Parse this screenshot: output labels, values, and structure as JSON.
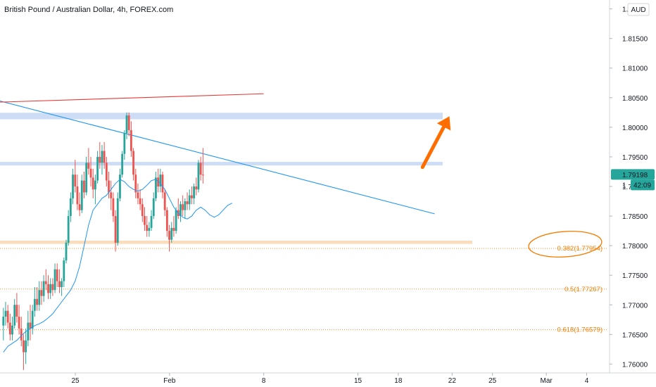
{
  "chart_data": {
    "type": "candlestick",
    "title": "British Pound / Australian Dollar, 4h, FOREX.com",
    "currency_label": "AUD",
    "y_ticks": [
      "1.82000",
      "1.81500",
      "1.81000",
      "1.80500",
      "1.80000",
      "1.79500",
      "1.79000",
      "1.78500",
      "1.78000",
      "1.77500",
      "1.77000",
      "1.76500",
      "1.76000"
    ],
    "ylim": [
      1.7585,
      1.8215
    ],
    "x_ticks": [
      {
        "label": "25",
        "day": 25
      },
      {
        "label": "Feb",
        "day": 32
      },
      {
        "label": "8",
        "day": 39
      },
      {
        "label": "15",
        "day": 46
      },
      {
        "label": "18",
        "day": 49
      },
      {
        "label": "22",
        "day": 53
      },
      {
        "label": "25",
        "day": 56
      },
      {
        "label": "Mar",
        "day": 60
      },
      {
        "label": "4",
        "day": 63
      }
    ],
    "xlim": [
      19.4,
      64.7
    ],
    "last_price": {
      "value": 1.79198,
      "label": "1.79198",
      "countdown": "42:09",
      "partial_label": "1"
    },
    "fib_levels": [
      {
        "label": "0.382(1.77954)",
        "value": 1.77954
      },
      {
        "label": "0.5(1.77267)",
        "value": 1.77267
      },
      {
        "label": "0.618(1.76579)",
        "value": 1.76579
      }
    ],
    "zones": [
      {
        "name": "resistance-upper",
        "y_top": 1.80245,
        "y_bottom": 1.80135,
        "x_start": 19.4,
        "x_end": 52.3,
        "color": "#c5d7f5"
      },
      {
        "name": "resistance-lower",
        "y_top": 1.79415,
        "y_bottom": 1.79355,
        "x_start": 19.4,
        "x_end": 52.3,
        "color": "#c5d7f5"
      },
      {
        "name": "support",
        "y_top": 1.78085,
        "y_bottom": 1.7803,
        "x_start": 19.4,
        "x_end": 54.5,
        "color": "#f9d7b0"
      }
    ],
    "trendlines": [
      {
        "name": "descending-trendline",
        "x1": 19.4,
        "y1": 1.80444,
        "x2": 51.7,
        "y2": 1.78538,
        "color": "#2196f3"
      },
      {
        "name": "red-upper-line",
        "x1": 19.4,
        "y1": 1.80425,
        "x2": 39.0,
        "y2": 1.80566,
        "color": "#e53935"
      }
    ],
    "arrow": {
      "from": [
        50.8,
        1.79325
      ],
      "to": [
        52.8,
        1.80185
      ],
      "color": "#ff6d00"
    },
    "candle_colors": {
      "up": "#26a69a",
      "down": "#ef5350",
      "ma": "#2196f3"
    },
    "candles": [
      [
        1.7665,
        1.7695,
        1.764,
        1.768
      ],
      [
        1.768,
        1.7705,
        1.7665,
        1.769
      ],
      [
        1.769,
        1.77,
        1.766,
        1.767
      ],
      [
        1.767,
        1.7685,
        1.764,
        1.765
      ],
      [
        1.765,
        1.768,
        1.764,
        1.7665
      ],
      [
        1.7665,
        1.771,
        1.766,
        1.77
      ],
      [
        1.77,
        1.772,
        1.767,
        1.768
      ],
      [
        1.768,
        1.77,
        1.765,
        1.766
      ],
      [
        1.766,
        1.768,
        1.763,
        1.764
      ],
      [
        1.764,
        1.765,
        1.759,
        1.762
      ],
      [
        1.762,
        1.766,
        1.76,
        1.764
      ],
      [
        1.764,
        1.769,
        1.763,
        1.767
      ],
      [
        1.767,
        1.77,
        1.764,
        1.766
      ],
      [
        1.766,
        1.77,
        1.765,
        1.769
      ],
      [
        1.769,
        1.773,
        1.768,
        1.771
      ],
      [
        1.771,
        1.773,
        1.769,
        1.77
      ],
      [
        1.77,
        1.774,
        1.769,
        1.7725
      ],
      [
        1.7725,
        1.774,
        1.77,
        1.7715
      ],
      [
        1.7715,
        1.775,
        1.7705,
        1.774
      ],
      [
        1.774,
        1.776,
        1.7725,
        1.7735
      ],
      [
        1.7735,
        1.775,
        1.771,
        1.772
      ],
      [
        1.772,
        1.7745,
        1.771,
        1.7735
      ],
      [
        1.7735,
        1.7745,
        1.7715,
        1.7725
      ],
      [
        1.7725,
        1.777,
        1.772,
        1.776
      ],
      [
        1.776,
        1.777,
        1.773,
        1.774
      ],
      [
        1.774,
        1.776,
        1.772,
        1.773
      ],
      [
        1.773,
        1.7745,
        1.7715,
        1.774
      ],
      [
        1.774,
        1.778,
        1.773,
        1.7775
      ],
      [
        1.7775,
        1.781,
        1.777,
        1.7805
      ],
      [
        1.7805,
        1.786,
        1.78,
        1.785
      ],
      [
        1.785,
        1.789,
        1.784,
        1.788
      ],
      [
        1.788,
        1.793,
        1.787,
        1.792
      ],
      [
        1.792,
        1.7945,
        1.789,
        1.79
      ],
      [
        1.79,
        1.792,
        1.786,
        1.787
      ],
      [
        1.787,
        1.789,
        1.785,
        1.786
      ],
      [
        1.786,
        1.792,
        1.7855,
        1.791
      ],
      [
        1.791,
        1.7925,
        1.788,
        1.789
      ],
      [
        1.789,
        1.795,
        1.7885,
        1.794
      ],
      [
        1.794,
        1.7965,
        1.792,
        1.793
      ],
      [
        1.793,
        1.795,
        1.79,
        1.7915
      ],
      [
        1.7915,
        1.793,
        1.788,
        1.7895
      ],
      [
        1.7895,
        1.792,
        1.787,
        1.791
      ],
      [
        1.791,
        1.796,
        1.7905,
        1.795
      ],
      [
        1.795,
        1.7975,
        1.793,
        1.794
      ],
      [
        1.794,
        1.797,
        1.792,
        1.796
      ],
      [
        1.796,
        1.7975,
        1.793,
        1.794
      ],
      [
        1.794,
        1.795,
        1.79,
        1.791
      ],
      [
        1.791,
        1.7925,
        1.788,
        1.789
      ],
      [
        1.789,
        1.791,
        1.786,
        1.788
      ],
      [
        1.788,
        1.789,
        1.784,
        1.785
      ],
      [
        1.785,
        1.786,
        1.779,
        1.7805
      ],
      [
        1.7805,
        1.789,
        1.78,
        1.788
      ],
      [
        1.788,
        1.793,
        1.7875,
        1.792
      ],
      [
        1.792,
        1.796,
        1.7915,
        1.7955
      ],
      [
        1.7955,
        1.7995,
        1.7945,
        1.799
      ],
      [
        1.799,
        1.8025,
        1.798,
        1.802
      ],
      [
        1.802,
        1.8025,
        1.7985,
        1.7995
      ],
      [
        1.7995,
        1.801,
        1.795,
        1.796
      ],
      [
        1.796,
        1.7965,
        1.791,
        1.792
      ],
      [
        1.792,
        1.793,
        1.788,
        1.789
      ],
      [
        1.789,
        1.7905,
        1.787,
        1.788
      ],
      [
        1.788,
        1.7895,
        1.786,
        1.787
      ],
      [
        1.787,
        1.788,
        1.784,
        1.785
      ],
      [
        1.785,
        1.7865,
        1.7825,
        1.7835
      ],
      [
        1.7835,
        1.785,
        1.7815,
        1.7825
      ],
      [
        1.7825,
        1.784,
        1.7815,
        1.783
      ],
      [
        1.783,
        1.786,
        1.7825,
        1.785
      ],
      [
        1.785,
        1.789,
        1.7845,
        1.788
      ],
      [
        1.788,
        1.7925,
        1.7875,
        1.7915
      ],
      [
        1.7915,
        1.793,
        1.789,
        1.79
      ],
      [
        1.79,
        1.793,
        1.789,
        1.792
      ],
      [
        1.792,
        1.7925,
        1.788,
        1.789
      ],
      [
        1.789,
        1.7895,
        1.785,
        1.786
      ],
      [
        1.786,
        1.7865,
        1.7815,
        1.7825
      ],
      [
        1.7825,
        1.7835,
        1.779,
        1.781
      ],
      [
        1.781,
        1.784,
        1.7805,
        1.783
      ],
      [
        1.783,
        1.785,
        1.7815,
        1.7825
      ],
      [
        1.7825,
        1.7865,
        1.782,
        1.786
      ],
      [
        1.786,
        1.788,
        1.7845,
        1.785
      ],
      [
        1.785,
        1.7875,
        1.784,
        1.787
      ],
      [
        1.787,
        1.7885,
        1.785,
        1.786
      ],
      [
        1.786,
        1.788,
        1.7845,
        1.7875
      ],
      [
        1.7875,
        1.789,
        1.786,
        1.787
      ],
      [
        1.787,
        1.7895,
        1.786,
        1.7885
      ],
      [
        1.7885,
        1.79,
        1.787,
        1.788
      ],
      [
        1.788,
        1.7905,
        1.787,
        1.79
      ],
      [
        1.79,
        1.7915,
        1.7885,
        1.7895
      ],
      [
        1.7895,
        1.7945,
        1.789,
        1.794
      ],
      [
        1.794,
        1.795,
        1.791,
        1.792
      ],
      [
        1.792,
        1.7965,
        1.7905,
        1.79198
      ]
    ],
    "ma": [
      1.762,
      1.763,
      1.7635,
      1.764,
      1.7648,
      1.7655,
      1.766,
      1.7665,
      1.7668,
      1.7672,
      1.7678,
      1.7685,
      1.7695,
      1.7705,
      1.7715,
      1.7725,
      1.774,
      1.7765,
      1.78,
      1.7835,
      1.786,
      1.787,
      1.788,
      1.7885,
      1.7895,
      1.7905,
      1.7912,
      1.7908,
      1.79,
      1.7895,
      1.7892,
      1.7895,
      1.7902,
      1.791,
      1.7912,
      1.7905,
      1.7895,
      1.788,
      1.7865,
      1.7855,
      1.7848,
      1.7845,
      1.785,
      1.786,
      1.7865,
      1.786,
      1.7852,
      1.7848,
      1.7852,
      1.786,
      1.7868,
      1.7872
    ]
  }
}
